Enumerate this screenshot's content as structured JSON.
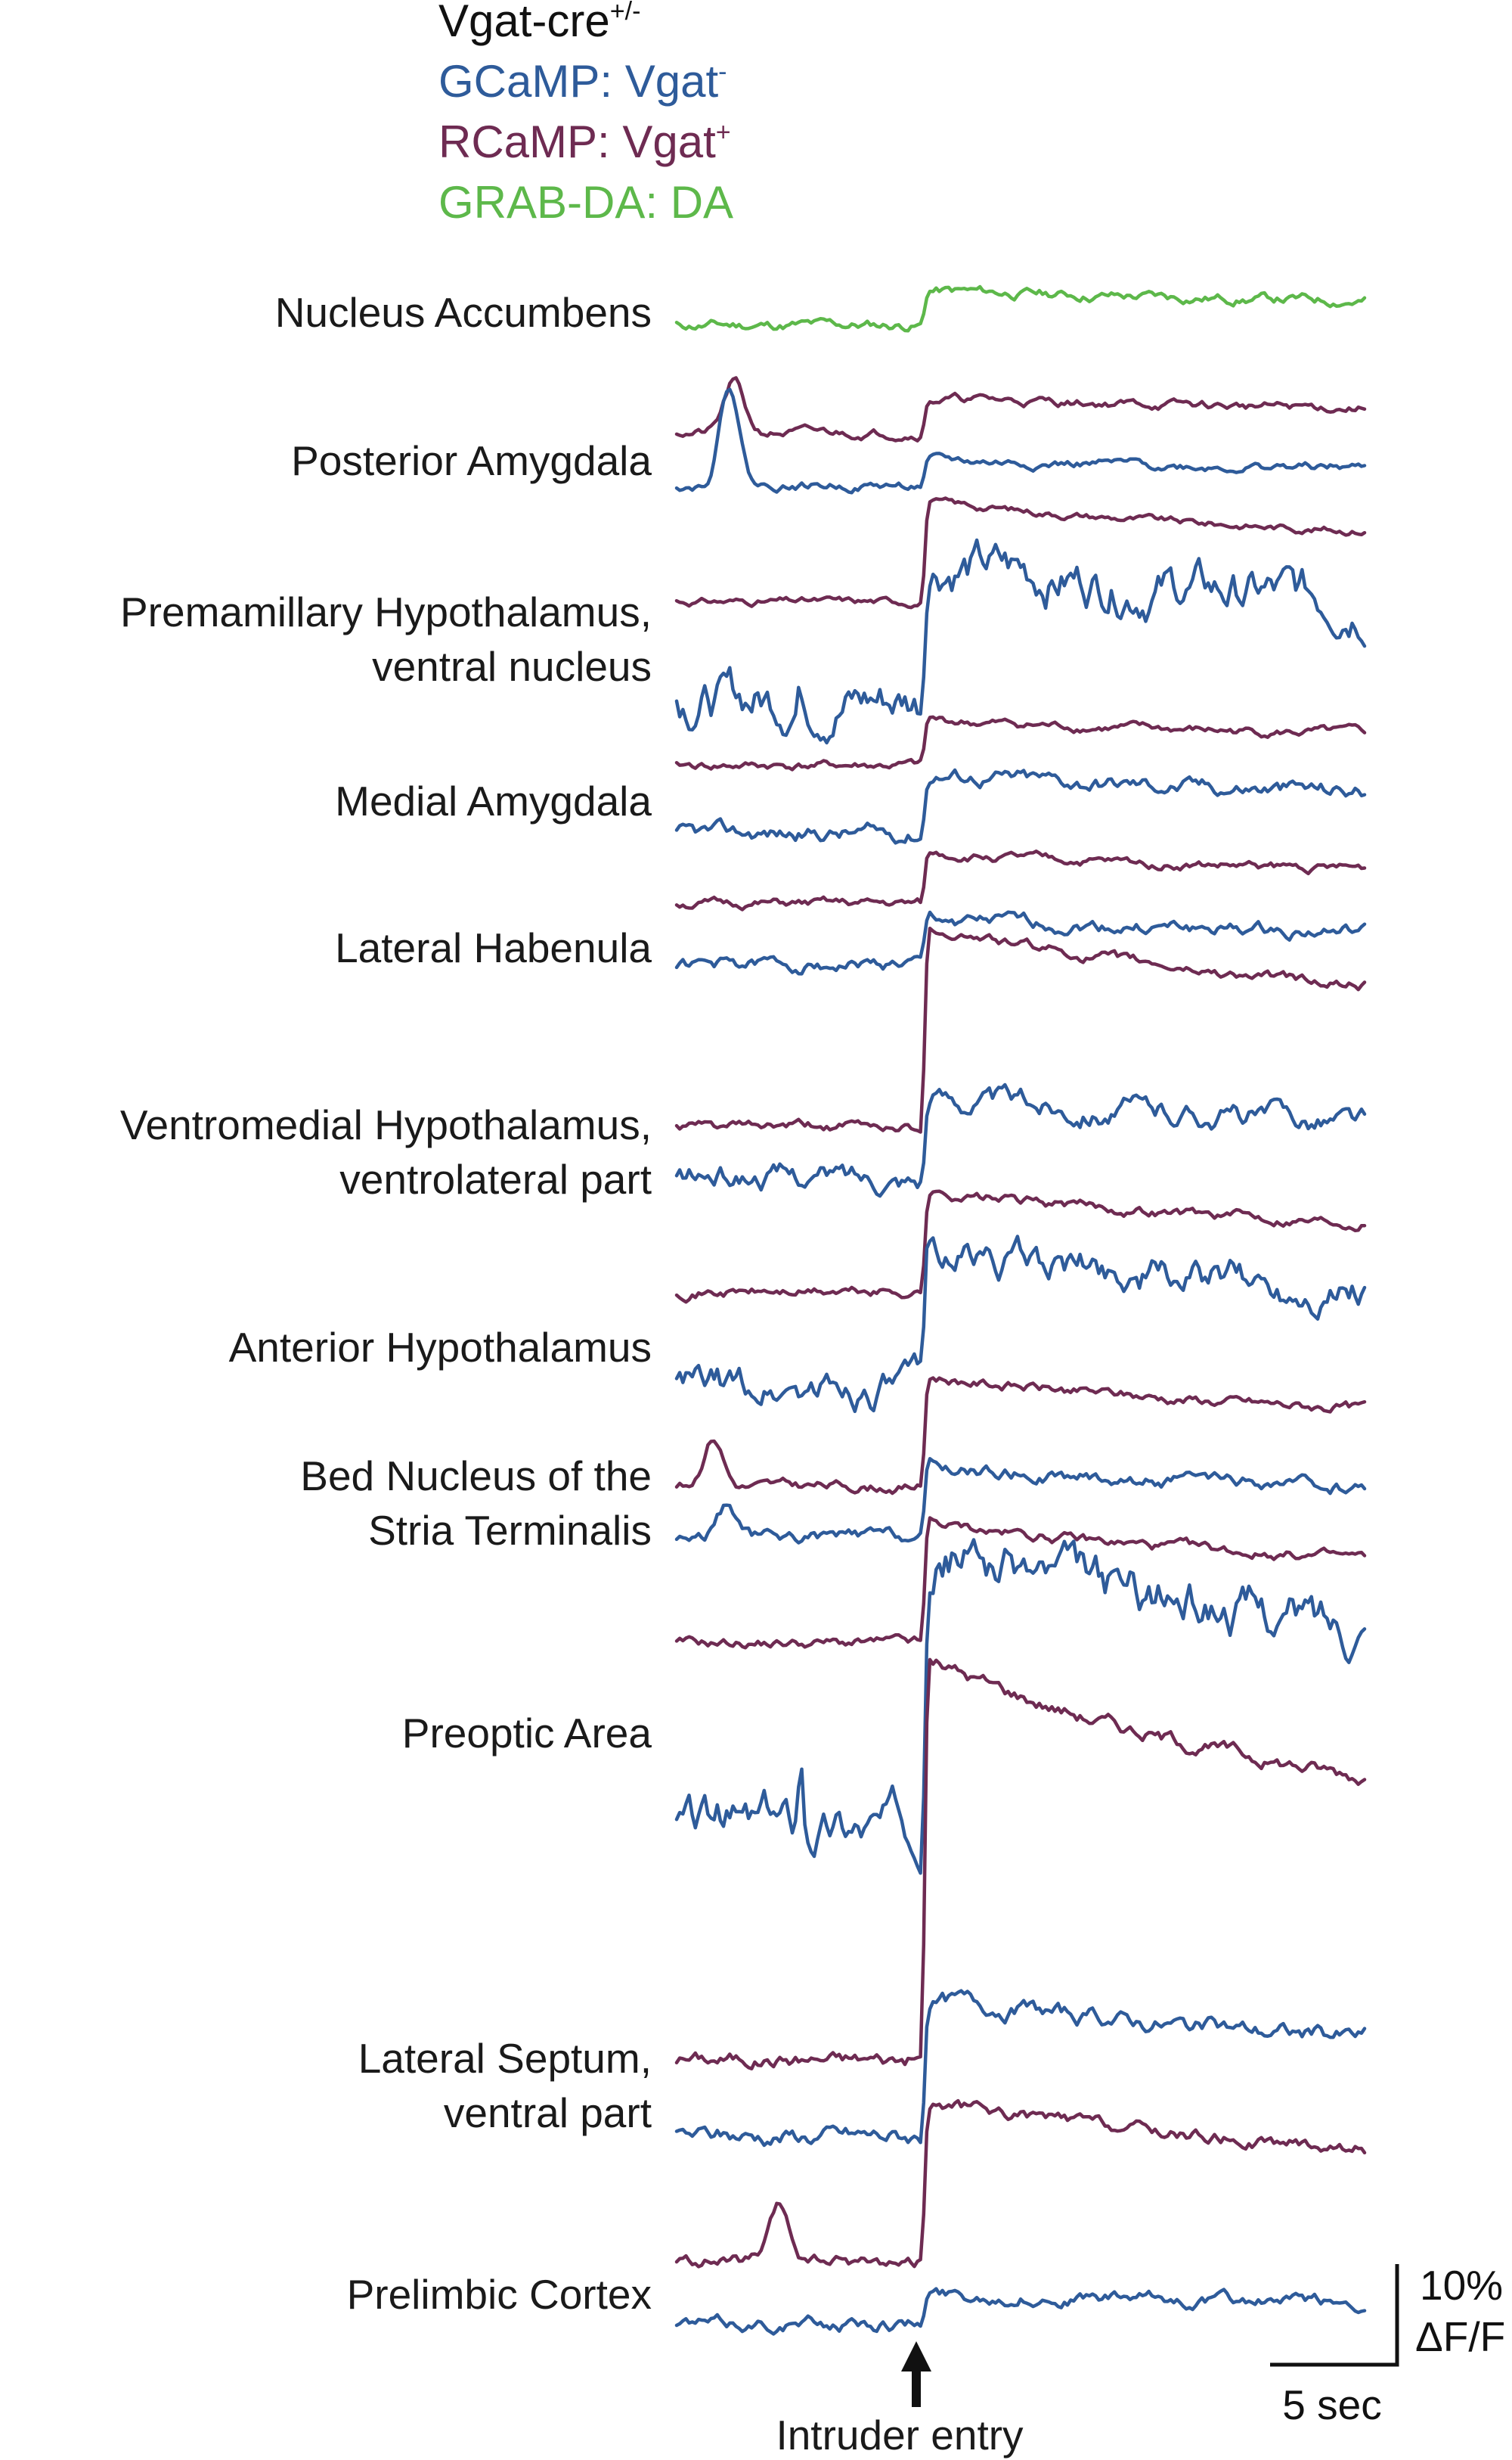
{
  "legend": {
    "genotype": "Vgat-cre",
    "genotype_sup": "+/-",
    "items": [
      {
        "label": "GCaMP: Vgat",
        "sup": "-",
        "color": "#2e5b9a"
      },
      {
        "label": "RCaMP: Vgat",
        "sup": "+",
        "color": "#6e2b52"
      },
      {
        "label": "GRAB-DA: DA",
        "sup": "",
        "color": "#5db84a"
      }
    ]
  },
  "colors": {
    "gcamp": "#2e5b9a",
    "rcamp": "#6e2b52",
    "grab_da": "#5db84a",
    "text": "#1a1a1a"
  },
  "scale_bar": {
    "time_label": "5 sec",
    "amplitude_label_1": "10%",
    "amplitude_label_2": "ΔF/F"
  },
  "event_marker": {
    "label": "Intruder entry",
    "icon": "up-arrow-icon"
  },
  "chart_data": {
    "type": "line",
    "x_unit": "sec",
    "duration_sec": 30,
    "event_time_sec": 10.7,
    "y_unit": "% ΔF/F",
    "panels": [
      {
        "region": [
          "Nucleus Accumbens"
        ],
        "series": [
          {
            "signal": "grab_da",
            "baseline": 0,
            "amp": 3.5,
            "noise": 0.7,
            "seed": 11
          }
        ]
      },
      {
        "region": [
          "Posterior Amygdala"
        ],
        "series": [
          {
            "signal": "rcamp",
            "baseline": 0,
            "amp": 3.5,
            "noise": 0.6,
            "seed": 21,
            "bump_t": 2.5,
            "bump_h": 5
          },
          {
            "signal": "gcamp",
            "baseline": 0,
            "amp": 2.5,
            "noise": 0.6,
            "seed": 22,
            "bump_t": 2.3,
            "bump_h": 10
          }
        ]
      },
      {
        "region": [
          "Premamillary Hypothalamus,",
          "ventral nucleus"
        ],
        "series": [
          {
            "signal": "rcamp",
            "baseline": 0,
            "amp": 10,
            "noise": 0.5,
            "seed": 31
          },
          {
            "signal": "gcamp",
            "baseline": 0,
            "amp": 14,
            "noise": 3.2,
            "seed": 32,
            "small_t": 5.4,
            "small_h": 1.5
          }
        ]
      },
      {
        "region": [
          "Medial Amygdala"
        ],
        "series": [
          {
            "signal": "rcamp",
            "baseline": 0,
            "amp": 4.5,
            "noise": 0.6,
            "seed": 41
          },
          {
            "signal": "gcamp",
            "baseline": 0,
            "amp": 6,
            "noise": 1.1,
            "seed": 42
          }
        ]
      },
      {
        "region": [
          "Lateral Habenula"
        ],
        "series": [
          {
            "signal": "rcamp",
            "baseline": 0,
            "amp": 5,
            "noise": 0.6,
            "seed": 51
          },
          {
            "signal": "gcamp",
            "baseline": 0,
            "amp": 4.5,
            "noise": 0.9,
            "seed": 52
          }
        ]
      },
      {
        "region": [
          "Ventromedial Hypothalamus,",
          "ventrolateral part"
        ],
        "series": [
          {
            "signal": "rcamp",
            "baseline": 0,
            "amp": 20,
            "noise": 0.7,
            "seed": 61
          },
          {
            "signal": "gcamp",
            "baseline": 0,
            "amp": 8,
            "noise": 1.6,
            "seed": 62
          }
        ]
      },
      {
        "region": [
          "Anterior Hypothalamus"
        ],
        "series": [
          {
            "signal": "rcamp",
            "baseline": 0,
            "amp": 10,
            "noise": 0.7,
            "seed": 71
          },
          {
            "signal": "gcamp",
            "baseline": 0,
            "amp": 14,
            "noise": 2.4,
            "seed": 72
          }
        ]
      },
      {
        "region": [
          "Bed Nucleus of the",
          "Stria Terminalis"
        ],
        "series": [
          {
            "signal": "rcamp",
            "baseline": 0,
            "amp": 11,
            "noise": 0.7,
            "seed": 81,
            "bump_t": 1.6,
            "bump_h": 5
          },
          {
            "signal": "gcamp",
            "baseline": 0,
            "amp": 7,
            "noise": 0.9,
            "seed": 82,
            "bump_t": 2.2,
            "bump_h": 3
          }
        ]
      },
      {
        "region": [
          "Preoptic Area"
        ],
        "series": [
          {
            "signal": "rcamp",
            "baseline": 0,
            "amp": 12,
            "noise": 0.7,
            "seed": 91
          },
          {
            "signal": "gcamp",
            "baseline": 0,
            "amp": 28,
            "noise": 3.2,
            "seed": 92,
            "small_t": 5.4,
            "small_h": 7
          }
        ]
      },
      {
        "region": [
          "Lateral Septum,",
          "ventral part"
        ],
        "series": [
          {
            "signal": "rcamp",
            "baseline": 0,
            "amp": 40,
            "noise": 1.0,
            "seed": 101
          },
          {
            "signal": "gcamp",
            "baseline": 0,
            "amp": 14,
            "noise": 1.2,
            "seed": 102
          }
        ]
      },
      {
        "region": [
          "Prelimbic Cortex"
        ],
        "series": [
          {
            "signal": "rcamp",
            "baseline": 0,
            "amp": 16,
            "noise": 0.9,
            "seed": 111,
            "bump_t": 4.5,
            "bump_h": 5
          },
          {
            "signal": "gcamp",
            "baseline": 0,
            "amp": 3,
            "noise": 0.9,
            "seed": 112
          }
        ]
      }
    ]
  }
}
